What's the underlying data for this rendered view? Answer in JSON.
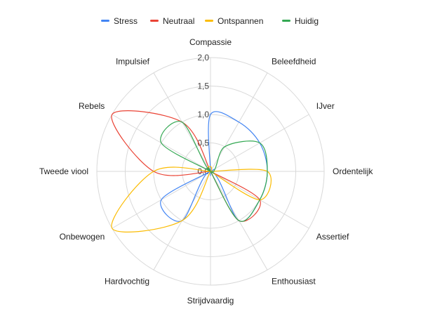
{
  "chart_data": {
    "type": "radar",
    "axes": [
      "Compassie",
      "Beleefdheid",
      "IJver",
      "Ordentelijk",
      "Assertief",
      "Enthousiast",
      "Strijdvaardig",
      "Hardvochtig",
      "Onbewogen",
      "Tweede viool",
      "Rebels",
      "Impulsief"
    ],
    "rlim": [
      0,
      2
    ],
    "ticks": [
      "0,0",
      "0,5",
      "1,0",
      "1,5",
      "2,0"
    ],
    "tick_values": [
      0,
      0.5,
      1.0,
      1.5,
      2.0
    ],
    "grid": true,
    "legend_position": "top",
    "series": [
      {
        "name": "Stress",
        "color": "#4285f4",
        "values": [
          1.0,
          1.0,
          1.0,
          1.0,
          1.0,
          1.0,
          0,
          1.0,
          1.0,
          0,
          0,
          0
        ]
      },
      {
        "name": "Neutraal",
        "color": "#ea4335",
        "values": [
          0,
          0,
          0,
          0,
          1.0,
          1.0,
          0,
          0,
          0,
          1.0,
          2.0,
          1.0
        ]
      },
      {
        "name": "Ontspannen",
        "color": "#fbbc04",
        "values": [
          0,
          0,
          0,
          1.0,
          1.0,
          0,
          0,
          1.0,
          2.0,
          1.0,
          0,
          0
        ]
      },
      {
        "name": "Huidig",
        "color": "#34a853",
        "values": [
          0,
          0.5,
          1.0,
          1.0,
          1.0,
          1.0,
          0,
          0,
          0,
          0,
          1.0,
          1.0
        ]
      }
    ]
  }
}
